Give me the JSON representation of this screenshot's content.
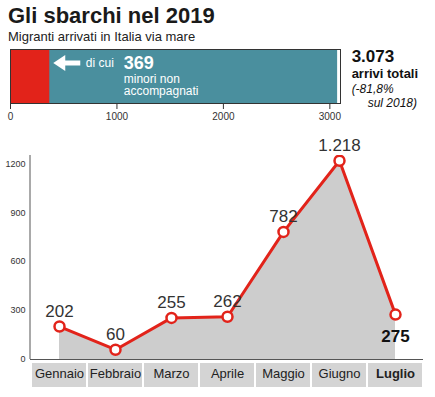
{
  "chart_data": [
    {
      "type": "bar",
      "orientation": "horizontal",
      "title": "Gli sbarchi nel 2019",
      "subtitle": "Migranti arrivati in Italia via mare",
      "stacked": false,
      "data_labels": true,
      "series": [
        {
          "values": [
            3073
          ],
          "value_labels": [
            "3.073"
          ],
          "color": "#4a8f9e"
        },
        {
          "values": [
            369
          ],
          "color": "#e2231a"
        }
      ],
      "annotations": [
        "di cui",
        "minori non accompagnati",
        "arrivi totali",
        "(-81,8%",
        "sul 2018)"
      ],
      "xlim": [
        0,
        3100
      ],
      "xticks": [
        0,
        1000,
        2000,
        3000
      ]
    },
    {
      "type": "line",
      "categories": [
        "Gennaio",
        "Febbraio",
        "Marzo",
        "Aprile",
        "Maggio",
        "Giugno",
        "Luglio"
      ],
      "values": [
        202,
        60,
        255,
        262,
        782,
        1218,
        275
      ],
      "value_labels": [
        "202",
        "60",
        "255",
        "262",
        "782",
        "1.218",
        "275"
      ],
      "color": "#e2231a",
      "marker": "circle",
      "data_labels": true,
      "grid": false,
      "ylim": [
        0,
        1250
      ],
      "yticks": [
        0,
        300,
        600,
        900,
        1200
      ]
    }
  ]
}
